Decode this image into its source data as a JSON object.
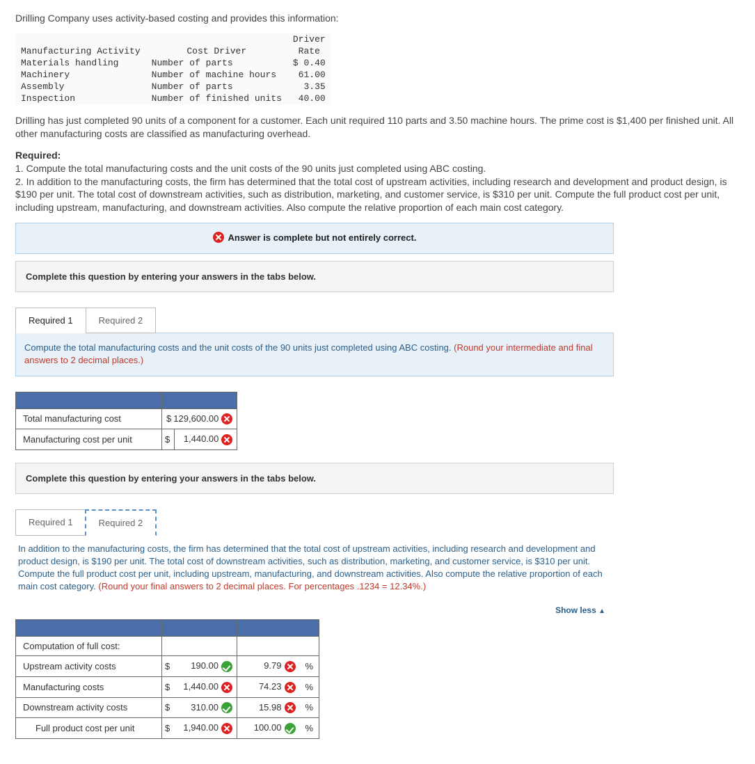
{
  "intro": "Drilling Company uses activity-based costing and provides this information:",
  "driverTable": {
    "headers": {
      "c1": "Manufacturing Activity",
      "c2": "Cost Driver",
      "c3a": "Driver",
      "c3b": "Rate"
    },
    "rows": [
      {
        "activity": "Materials handling",
        "driver": "Number of parts",
        "rate": "$ 0.40"
      },
      {
        "activity": "Machinery",
        "driver": "Number of machine hours",
        "rate": "61.00"
      },
      {
        "activity": "Assembly",
        "driver": "Number of parts",
        "rate": "3.35"
      },
      {
        "activity": "Inspection",
        "driver": "Number of finished units",
        "rate": "40.00"
      }
    ]
  },
  "para1": "Drilling has just completed 90 units of a component for a customer. Each unit required 110 parts and 3.50 machine hours. The prime cost is $1,400 per finished unit. All other manufacturing costs are classified as manufacturing overhead.",
  "requiredHdr": "Required:",
  "req1": "1. Compute the total manufacturing costs and the unit costs of the 90 units just completed using ABC costing.",
  "req2": "2. In addition to the manufacturing costs, the firm has determined that the total cost of upstream activities, including research and development and product design, is $190 per unit. The total cost of downstream activities, such as distribution, marketing, and customer service, is $310 per unit. Compute the full product cost per unit, including upstream, manufacturing, and downstream activities. Also compute the relative proportion of each main cost category.",
  "statusMsg": "Answer is complete but not entirely correct.",
  "instruction": "Complete this question by entering your answers in the tabs below.",
  "tabs": {
    "t1": "Required 1",
    "t2": "Required 2"
  },
  "promptA": {
    "main": "Compute the total manufacturing costs and the unit costs of the 90 units just completed using ABC costing. ",
    "note": "(Round your intermediate and final answers to 2 decimal places.)"
  },
  "tableA": {
    "r1": {
      "label": "Total manufacturing cost",
      "sym": "$",
      "val": "129,600.00",
      "ok": false
    },
    "r2": {
      "label": "Manufacturing cost per unit",
      "sym": "$",
      "val": "1,440.00",
      "ok": false
    }
  },
  "instruction2": "Complete this question by entering your answers in the tabs below.",
  "promptB": {
    "main": "In addition to the manufacturing costs, the firm has determined that the total cost of upstream activities, including research and development and product design, is $190 per unit. The total cost of downstream activities, such as distribution, marketing, and customer service, is $310 per unit. Compute the full product cost per unit, including upstream, manufacturing, and downstream activities. Also compute the relative proportion of each main cost category. ",
    "note": "(Round your final answers to 2 decimal places. For percentages .1234 = 12.34%.)"
  },
  "showLess": "Show less",
  "tableB": {
    "hdr": "Computation of full cost:",
    "rows": [
      {
        "label": "Upstream activity costs",
        "sym": "$",
        "val": "190.00",
        "valOk": true,
        "pct": "9.79",
        "pctOk": false
      },
      {
        "label": "Manufacturing costs",
        "sym": "$",
        "val": "1,440.00",
        "valOk": false,
        "pct": "74.23",
        "pctOk": false
      },
      {
        "label": "Downstream activity costs",
        "sym": "$",
        "val": "310.00",
        "valOk": true,
        "pct": "15.98",
        "pctOk": false
      },
      {
        "label": "Full product cost per unit",
        "sym": "$",
        "val": "1,940.00",
        "valOk": false,
        "pct": "100.00",
        "pctOk": true,
        "indent": true
      }
    ],
    "pctSym": "%"
  }
}
